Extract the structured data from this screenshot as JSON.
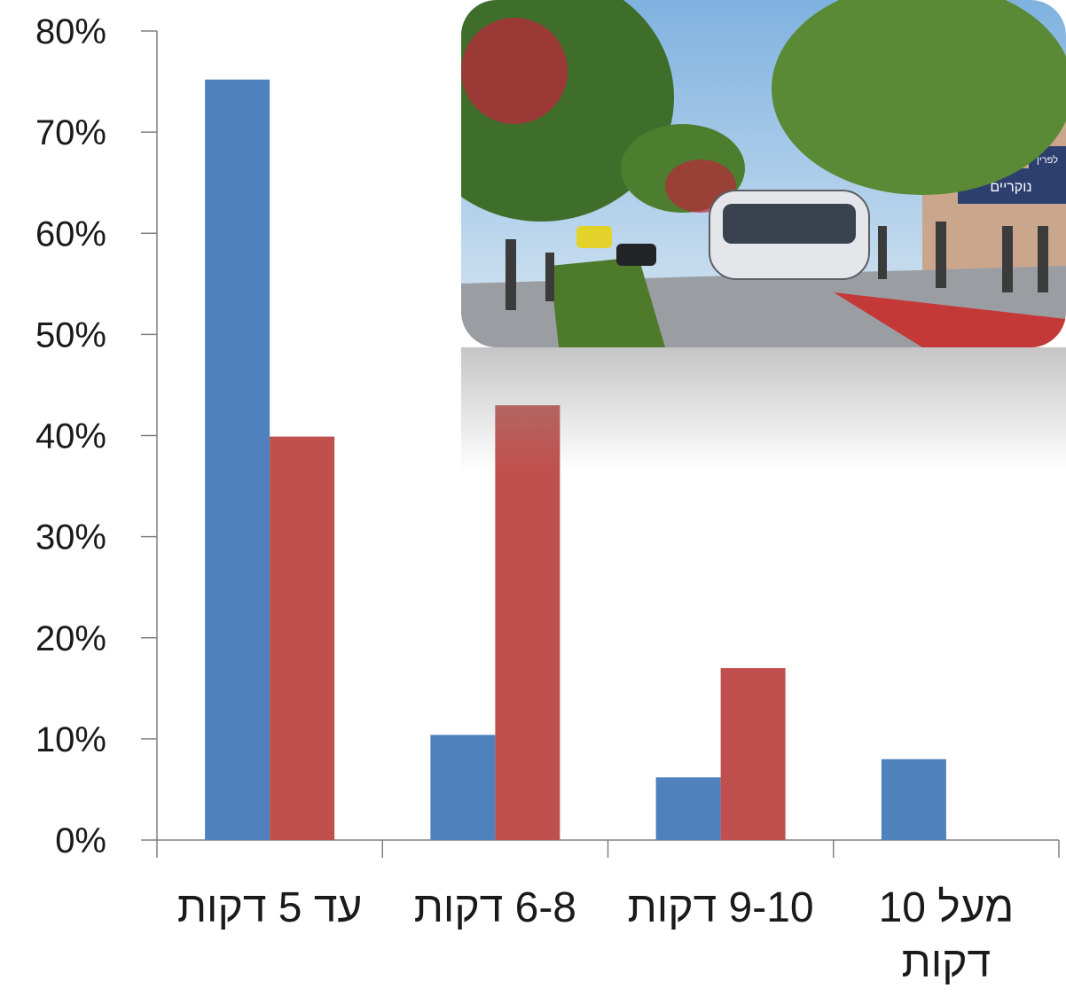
{
  "chart_data": {
    "type": "bar",
    "categories": [
      "עד 5 דקות",
      "6-8 דקות",
      "9-10 דקות",
      "מעל 10 דקות"
    ],
    "category_lines": [
      [
        "עד 5 דקות"
      ],
      [
        "6-8 דקות"
      ],
      [
        "9-10 דקות"
      ],
      [
        "מעל 10",
        "דקות"
      ]
    ],
    "series": [
      {
        "values": [
          75.2,
          10.4,
          6.2,
          8.0
        ],
        "color": "#4F81BD"
      },
      {
        "values": [
          39.9,
          43.0,
          17.0,
          0.0
        ],
        "color": "#C0504D"
      }
    ],
    "ylim": [
      0,
      80
    ],
    "y_ticks": [
      0,
      10,
      20,
      30,
      40,
      50,
      60,
      70,
      80
    ],
    "y_tick_format": "{v}%",
    "grid": false,
    "legend": "none"
  },
  "photo": {
    "sign_1": "לפרין",
    "sign_2": "נוקריים"
  }
}
